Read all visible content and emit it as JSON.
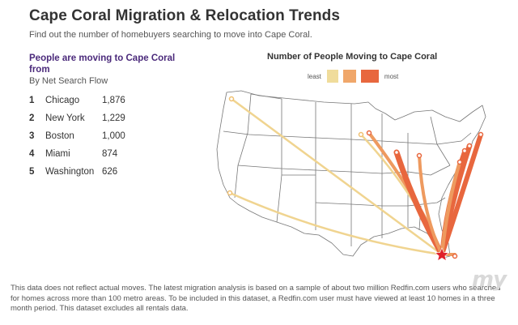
{
  "header": {
    "title": "Cape Coral Migration & Relocation Trends",
    "subtitle": "Find out the number of homebuyers searching to move into Cape Coral."
  },
  "ranking": {
    "heading": "People are moving to Cape Coral from",
    "subheading": "By Net Search Flow",
    "items": [
      {
        "rank": "1",
        "city": "Chicago",
        "count": "1,876"
      },
      {
        "rank": "2",
        "city": "New York",
        "count": "1,229"
      },
      {
        "rank": "3",
        "city": "Boston",
        "count": "1,000"
      },
      {
        "rank": "4",
        "city": "Miami",
        "count": "874"
      },
      {
        "rank": "5",
        "city": "Washington",
        "count": "626"
      }
    ]
  },
  "map": {
    "title": "Number of People Moving to Cape Coral",
    "legend": {
      "least_label": "least",
      "most_label": "most",
      "colors": [
        "#f0dc9b",
        "#f0a76a",
        "#e8673e"
      ]
    },
    "destination_icon": "red-star-icon",
    "flow_colors": {
      "light": "#f0d490",
      "mid": "#ee9a5f",
      "strong": "#e8673e"
    }
  },
  "footnote": "This data does not reflect actual moves. The latest migration analysis is based on a sample of about two million Redfin.com users who searched for homes across more than 100 metro areas. To be included in this dataset, a Redfin.com user must have viewed at least 10 homes in a three month period. This dataset excludes all rentals data.",
  "watermark": "my"
}
